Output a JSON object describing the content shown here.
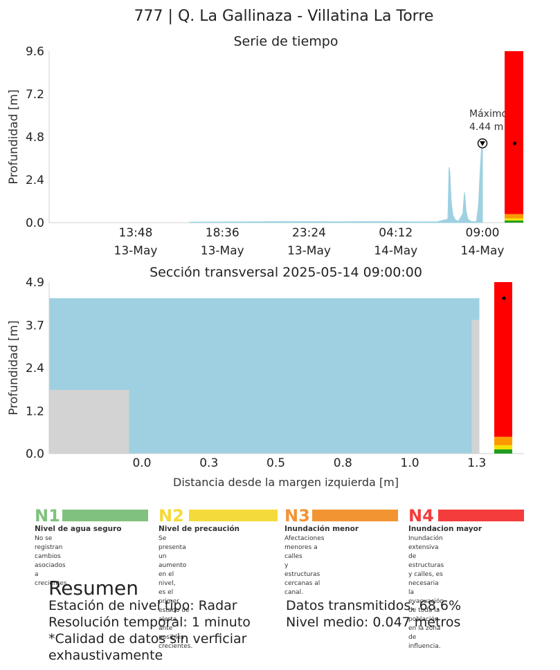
{
  "header": {
    "title": "777 | Q. La Gallinaza - Villatina La Torre"
  },
  "chart_data": [
    {
      "type": "area",
      "title": "Serie de tiempo",
      "ylabel": "Profundidad [m]",
      "xlabel": "",
      "ylim": [
        0,
        9.6
      ],
      "yticks": [
        "0.0",
        "2.4",
        "4.8",
        "7.2",
        "9.6"
      ],
      "xticks": [
        {
          "time": "13:48",
          "date": "13-May"
        },
        {
          "time": "18:36",
          "date": "13-May"
        },
        {
          "time": "23:24",
          "date": "13-May"
        },
        {
          "time": "04:12",
          "date": "14-May"
        },
        {
          "time": "09:00",
          "date": "14-May"
        }
      ],
      "series": [
        {
          "color": "#9ed0e1",
          "x": [
            "2025-05-13 16:48",
            "2025-05-13 19:00",
            "2025-05-13 22:00",
            "2025-05-14 01:00",
            "2025-05-14 03:00",
            "2025-05-14 05:30",
            "2025-05-14 06:30",
            "2025-05-14 07:05",
            "2025-05-14 07:09",
            "2025-05-14 07:12",
            "2025-05-14 07:16",
            "2025-05-14 07:22",
            "2025-05-14 07:30",
            "2025-05-14 07:40",
            "2025-05-14 07:55",
            "2025-05-14 08:00",
            "2025-05-14 08:02",
            "2025-05-14 08:06",
            "2025-05-14 08:12",
            "2025-05-14 08:20",
            "2025-05-14 08:30",
            "2025-05-14 08:40",
            "2025-05-14 08:47",
            "2025-05-14 08:52",
            "2025-05-14 08:56",
            "2025-05-14 09:00"
          ],
          "y": [
            0.03,
            0.04,
            0.06,
            0.05,
            0.06,
            0.04,
            0.05,
            0.2,
            3.1,
            2.8,
            1.2,
            0.4,
            0.15,
            0.08,
            0.5,
            1.7,
            1.4,
            0.6,
            0.2,
            0.08,
            0.05,
            0.06,
            1.0,
            2.8,
            4.0,
            4.44
          ]
        }
      ],
      "annotations": [
        {
          "label": "Máximo",
          "value": "4.44 m",
          "x": "2025-05-14 09:00",
          "y": 4.44
        }
      ],
      "levels_bar": {
        "ylim": [
          0,
          9.6
        ],
        "bands": [
          {
            "name": "N1",
            "from": 0.0,
            "to": 0.12,
            "color": "#1f9e1f"
          },
          {
            "name": "N2",
            "from": 0.12,
            "to": 0.24,
            "color": "#f5e100"
          },
          {
            "name": "N3",
            "from": 0.24,
            "to": 0.48,
            "color": "#ff9900"
          },
          {
            "name": "N4",
            "from": 0.48,
            "to": 9.6,
            "color": "#ff0000"
          }
        ],
        "marker": 4.44
      }
    },
    {
      "type": "area",
      "title": "Sección transversal 2025-05-14 09:00:00",
      "ylabel": "Profundidad [m]",
      "xlabel": "Distancia desde la margen izquierda [m]",
      "xlim": [
        -0.36,
        1.33
      ],
      "ylim": [
        0,
        4.9
      ],
      "xticks": [
        "0.0",
        "0.3",
        "0.5",
        "0.8",
        "1.0",
        "1.3"
      ],
      "xtick_values": [
        0.0,
        0.26,
        0.52,
        0.78,
        1.04,
        1.3
      ],
      "yticks": [
        "0.0",
        "1.2",
        "2.4",
        "3.7",
        "4.9"
      ],
      "ytick_values": [
        0.0,
        1.22,
        2.45,
        3.67,
        4.9
      ],
      "water_level": 4.44,
      "water_color": "#9ed0e1",
      "terrain_color": "#d3d3d3",
      "terrain": [
        {
          "x0": -0.36,
          "x1": -0.05,
          "y": 1.82
        },
        {
          "x0": 1.28,
          "x1": 1.31,
          "y": 3.82
        }
      ],
      "levels_bar": {
        "ylim": [
          0,
          4.9
        ],
        "bands": [
          {
            "name": "N1",
            "from": 0.0,
            "to": 0.12,
            "color": "#1f9e1f"
          },
          {
            "name": "N2",
            "from": 0.12,
            "to": 0.24,
            "color": "#f5e100"
          },
          {
            "name": "N3",
            "from": 0.24,
            "to": 0.48,
            "color": "#ff9900"
          },
          {
            "name": "N4",
            "from": 0.48,
            "to": 4.9,
            "color": "#ff0000"
          }
        ],
        "marker": 4.44
      }
    }
  ],
  "legend": {
    "levels": [
      {
        "code": "N1",
        "color": "#80c17d",
        "name": "Nivel de agua seguro",
        "desc": [
          "No se registran cambios asociados",
          "a crecientes."
        ]
      },
      {
        "code": "N2",
        "color": "#f5da3b",
        "name": "Nivel de precaución",
        "desc": [
          "Se presenta un aumento en el nivel,",
          "es el primer estado de alerta ante",
          "posibles crecientes."
        ]
      },
      {
        "code": "N3",
        "color": "#f39433",
        "name": "Inundación menor",
        "desc": [
          "Afectaciones menores a calles",
          "y estructuras cercanas al canal."
        ]
      },
      {
        "code": "N4",
        "color": "#f43c3c",
        "name": "Inundacion mayor",
        "desc": [
          "Inundación extensiva de estructuras",
          "y calles, es necesaria la evacuación",
          "de toda la población en la zona de",
          "influencia."
        ]
      }
    ]
  },
  "summary": {
    "title": "Resumen",
    "left": [
      "Estación de nivel tipo: Radar",
      "Resolución temporal: 1 minuto",
      "*Calidad de datos sin verficiar",
      "exhaustivamente"
    ],
    "right": [
      "Datos transmitidos: 68.6%",
      "Nivel medio: 0.047 metros"
    ]
  }
}
